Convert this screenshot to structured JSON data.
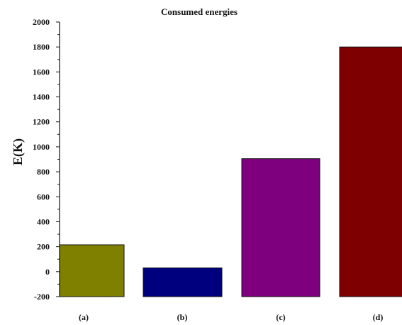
{
  "chart_data": {
    "type": "bar",
    "title": "Consumed energies",
    "xlabel": "",
    "ylabel": "E(K)",
    "categories": [
      "(a)",
      "(b)",
      "(c)",
      "(d)"
    ],
    "values": [
      215,
      30,
      905,
      1800
    ],
    "colors": [
      "#7f7f00",
      "#00007f",
      "#7f007f",
      "#7f0000"
    ],
    "ylim": [
      -200,
      2000
    ],
    "yticks": [
      -200,
      0,
      200,
      400,
      600,
      800,
      1000,
      1200,
      1400,
      1600,
      1800,
      2000
    ],
    "grid": false,
    "legend": "none"
  }
}
